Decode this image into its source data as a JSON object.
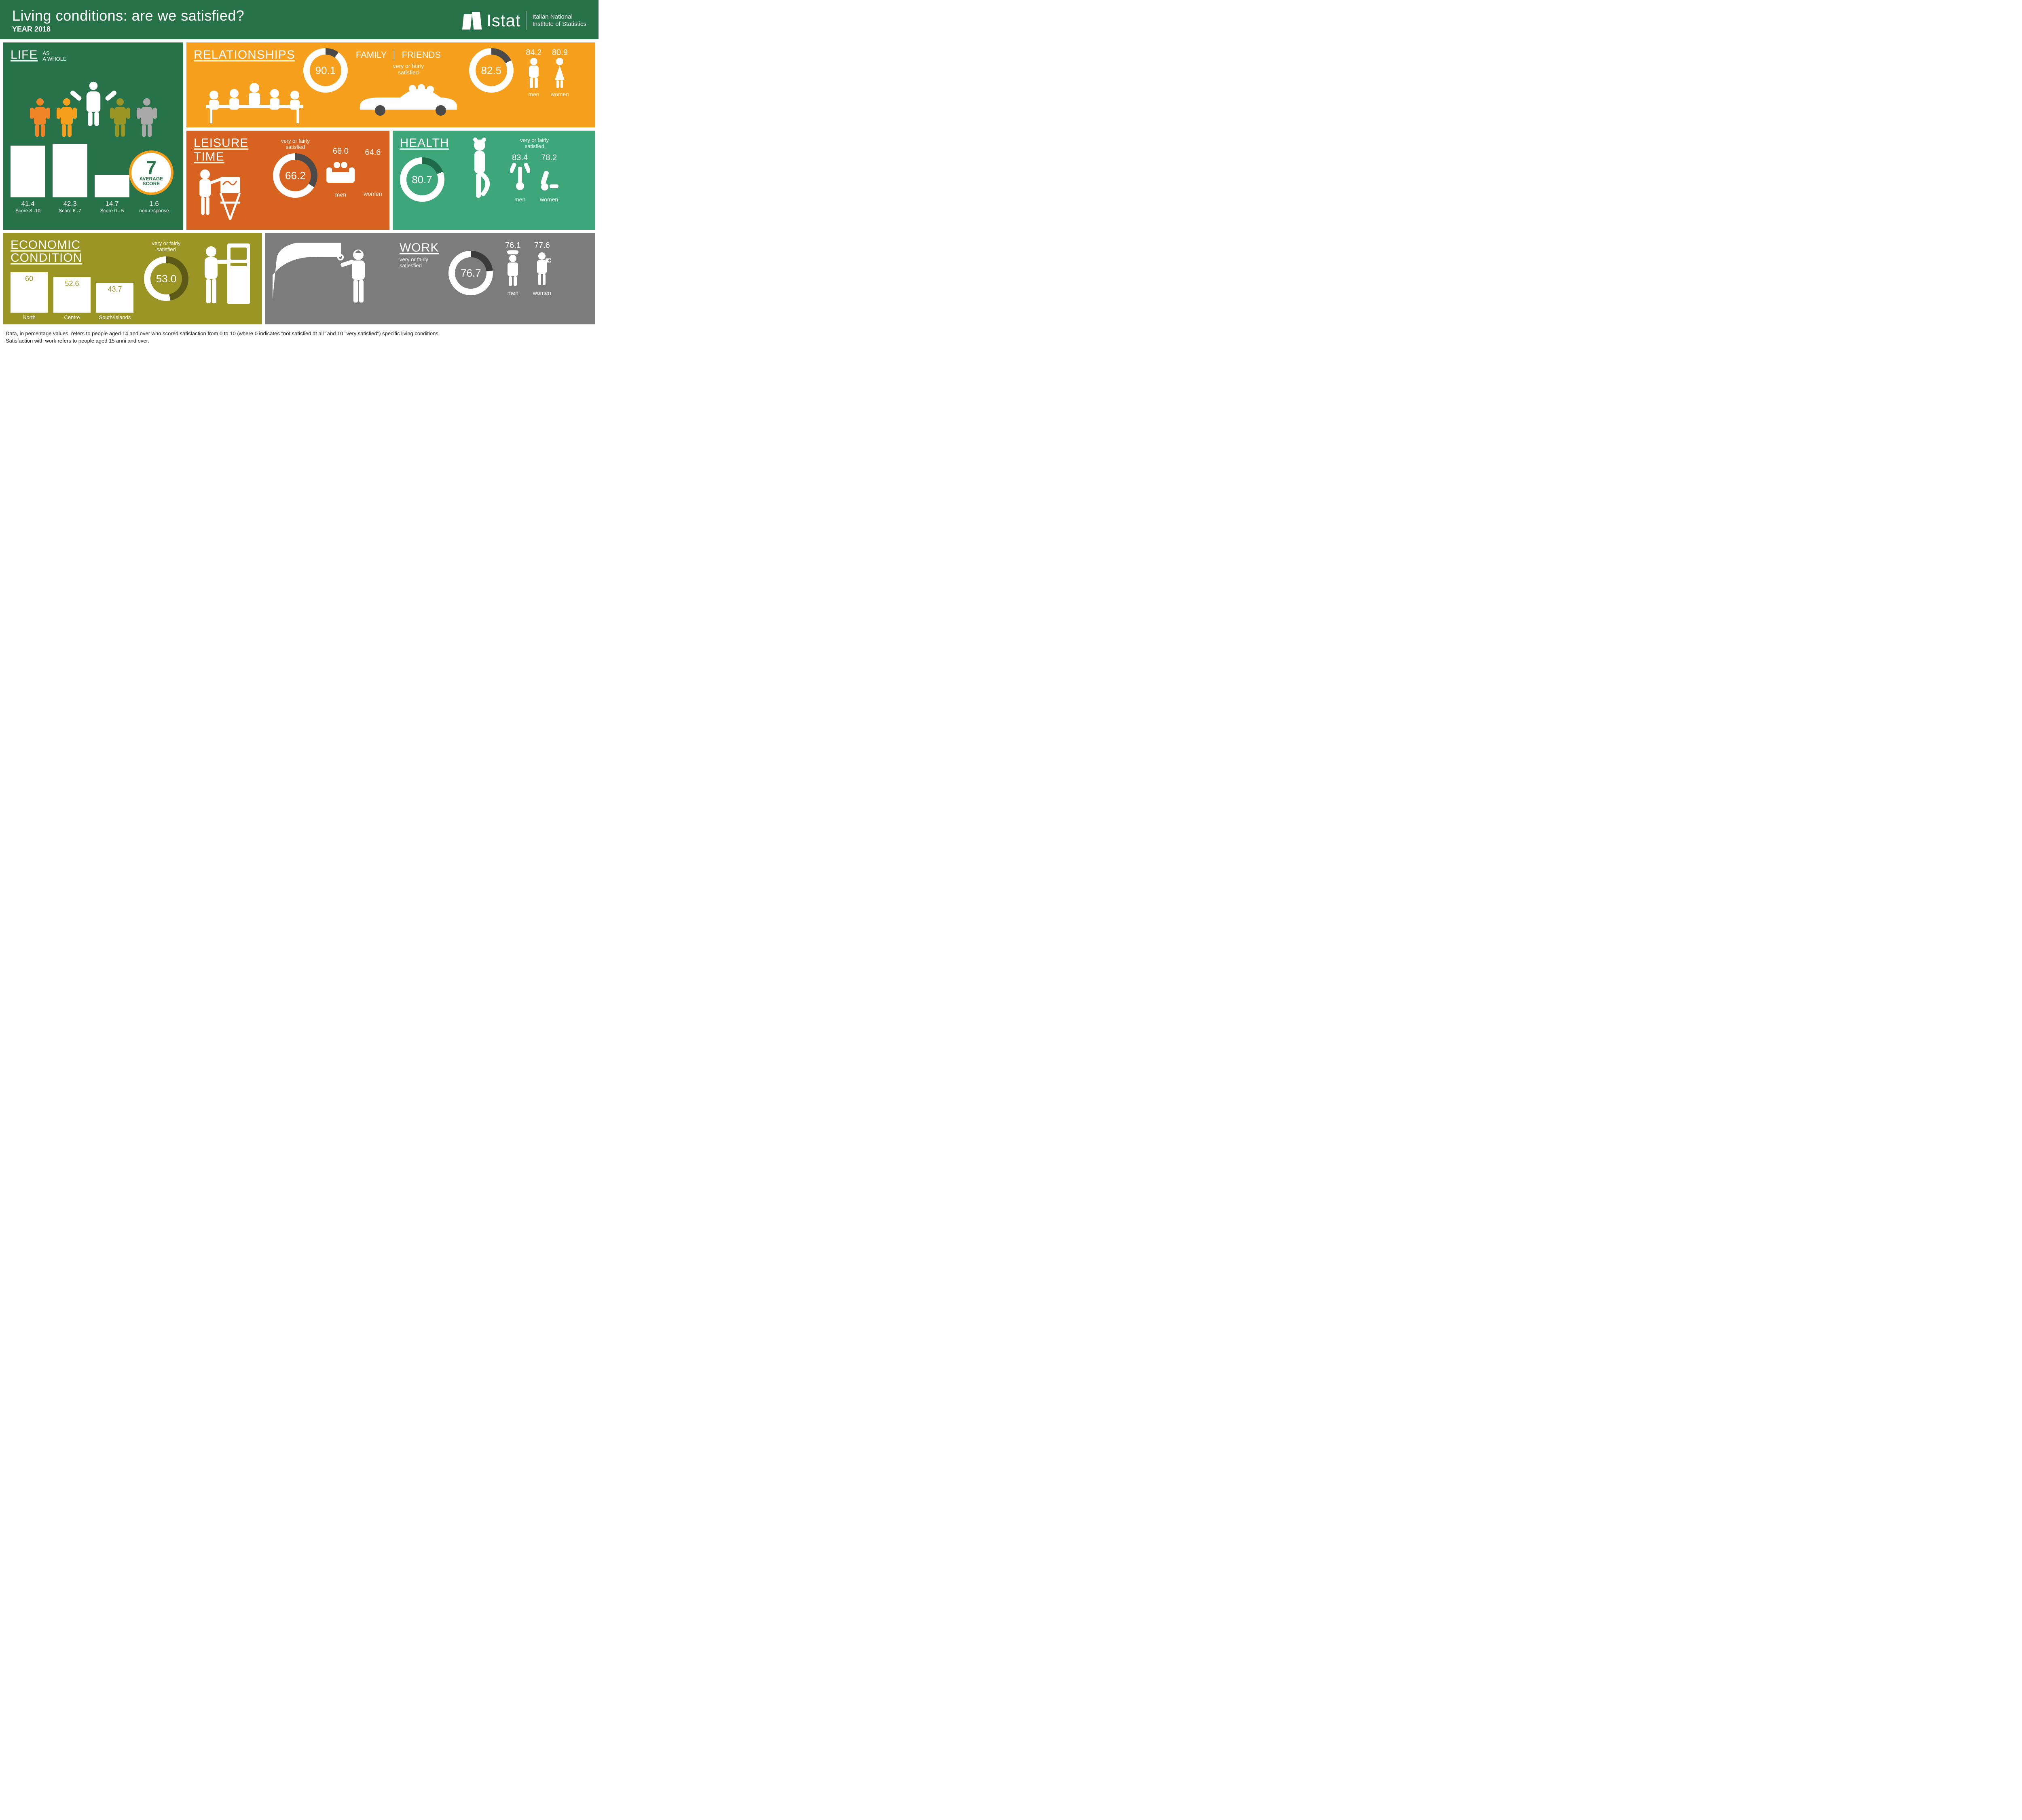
{
  "colors": {
    "header": "#277248",
    "life_bg": "#277248",
    "rel_bg": "#f7a01e",
    "leisure_bg": "#d8621f",
    "health_bg": "#3da77a",
    "econ_bg": "#9a9524",
    "work_bg": "#7c7c7c",
    "life_people": [
      "#f08427",
      "#f7a01e",
      "#ffffff",
      "#9a9524",
      "#a8a8a8"
    ],
    "avg_ring": "#f7a01e",
    "avg_text": "#277248",
    "donut_track_dark": "#4a4a4a"
  },
  "header": {
    "title": "Living conditions: are we satisfied?",
    "year": "YEAR 2018",
    "logo_name": "Istat",
    "logo_sub1": "Italian National",
    "logo_sub2": "Institute of Statistics"
  },
  "life": {
    "title": "LIFE",
    "sub1": "AS",
    "sub2": "A WHOLE",
    "avg_num": "7",
    "avg_label": "AVERAGE\nSCORE",
    "bars": [
      {
        "value": "41.4",
        "label": "Score 8 -10",
        "h": 128
      },
      {
        "value": "42.3",
        "label": "Score 6 -7",
        "h": 132
      },
      {
        "value": "14.7",
        "label": "Score 0 - 5",
        "h": 56
      },
      {
        "value": "1.6",
        "label": "non-response",
        "h": 0
      }
    ]
  },
  "relationships": {
    "title": "RELATIONSHIPS",
    "family_label": "FAMILY",
    "friends_label": "FRIENDS",
    "sub": "very or fairly\nsatisfied",
    "family": {
      "value": "90.1",
      "pct": 90.1
    },
    "friends": {
      "value": "82.5",
      "pct": 82.5
    },
    "men": {
      "value": "84.2",
      "label": "men"
    },
    "women": {
      "value": "80.9",
      "label": "women"
    }
  },
  "leisure": {
    "title": "LEISURE TIME",
    "sub": "very or fairly\nsatisfied",
    "donut": {
      "value": "66.2",
      "pct": 66.2
    },
    "men": {
      "value": "68.0",
      "label": "men"
    },
    "women": {
      "value": "64.6",
      "label": "women"
    }
  },
  "health": {
    "title": "HEALTH",
    "sub": "very or fairly\nsatisfied",
    "donut": {
      "value": "80.7",
      "pct": 80.7
    },
    "men": {
      "value": "83.4",
      "label": "men"
    },
    "women": {
      "value": "78.2",
      "label": "women"
    }
  },
  "econ": {
    "title": "ECONOMIC\nCONDITION",
    "sub": "very or fairly\nsatisfied",
    "donut": {
      "value": "53.0",
      "pct": 53.0
    },
    "bars": [
      {
        "value": "60",
        "label": "North",
        "h": 100
      },
      {
        "value": "52.6",
        "label": "Centre",
        "h": 88
      },
      {
        "value": "43.7",
        "label": "South/Islands",
        "h": 74
      }
    ]
  },
  "work": {
    "title": "WORK",
    "sub": "very or fairly\nsatiesfied",
    "donut": {
      "value": "76.7",
      "pct": 76.7
    },
    "men": {
      "value": "76.1",
      "label": "men"
    },
    "women": {
      "value": "77.6",
      "label": "women"
    }
  },
  "footer": {
    "l1": "Data, in percentage values, refers to people aged 14 and over who scored satisfaction from 0 to 10 (where 0 indicates \"not satisfied at all\" and 10 \"very satisfied\") specific living conditions.",
    "l2": "Satisfaction with work refers to people aged 15 anni and over."
  }
}
